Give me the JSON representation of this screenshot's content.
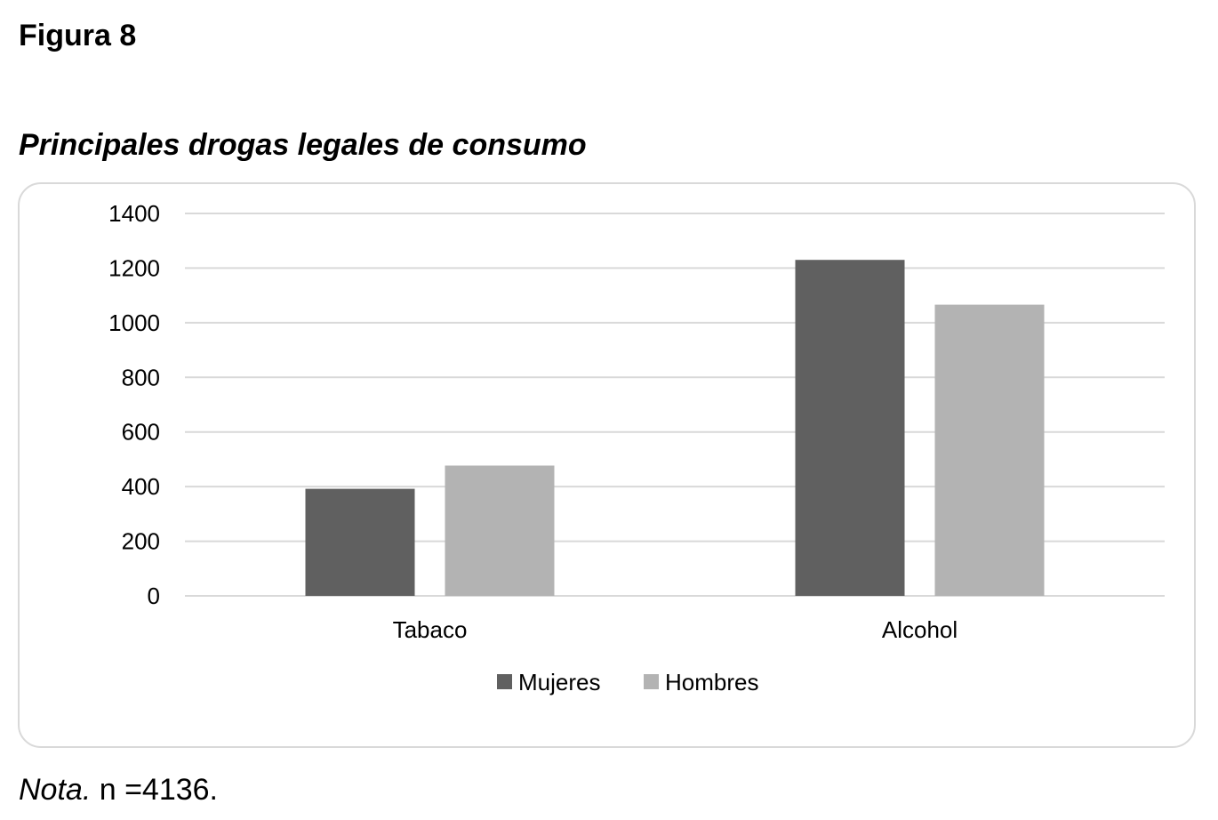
{
  "figure_label": "Figura 8",
  "figure_title": "Principales drogas legales de consumo",
  "note": {
    "label": "Nota.",
    "text": " n =4136."
  },
  "chart_data": {
    "type": "bar",
    "title": "",
    "xlabel": "",
    "ylabel": "",
    "categories": [
      "Tabaco",
      "Alcohol"
    ],
    "series": [
      {
        "name": "Mujeres",
        "values": [
          392,
          1230
        ],
        "color": "#606060"
      },
      {
        "name": "Hombres",
        "values": [
          477,
          1066
        ],
        "color": "#b3b3b3"
      }
    ],
    "ylim": [
      0,
      1400
    ],
    "yticks": [
      0,
      200,
      400,
      600,
      800,
      1000,
      1200,
      1400
    ],
    "grid": true,
    "gridline_color": "#d9d9d9",
    "legend_position": "bottom",
    "frame": "rounded-border"
  }
}
